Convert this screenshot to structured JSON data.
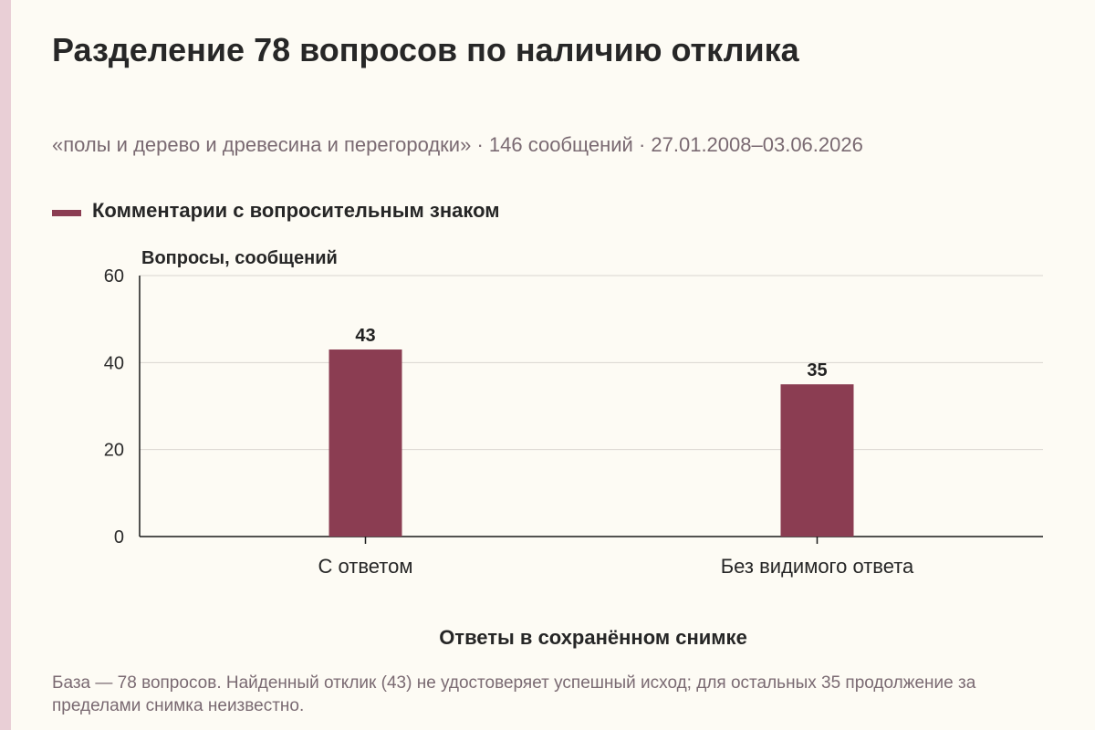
{
  "title": "Разделение 78 вопросов по наличию отклика",
  "subtitle": "«полы и дерево и древесина и перегородки» · 146 сообщений · 27.01.2008–03.06.2026",
  "note": "База — 78 вопросов. Найденный отклик (43) не удостоверяет успешный исход; для остальных 35 продолжение за пределами снимка неизвестно.",
  "colors": {
    "bar": "#8b3d52",
    "grid": "#d9d6cf",
    "axis": "#1a1a1a"
  },
  "chart_data": {
    "type": "bar",
    "categories": [
      "С ответом",
      "Без видимого ответа"
    ],
    "series": [
      {
        "name": "Комментарии с вопросительным знаком",
        "values": [
          43,
          35
        ]
      }
    ],
    "data_labels": [
      "43",
      "35"
    ],
    "xlabel": "Ответы в сохранённом снимке",
    "ylabel": "Вопросы, сообщений",
    "ylim": [
      0,
      60
    ],
    "yticks": [
      0,
      20,
      40,
      60
    ],
    "ytick_labels": [
      "0",
      "20",
      "40",
      "60"
    ],
    "grid": true,
    "legend_position": "top-left"
  }
}
